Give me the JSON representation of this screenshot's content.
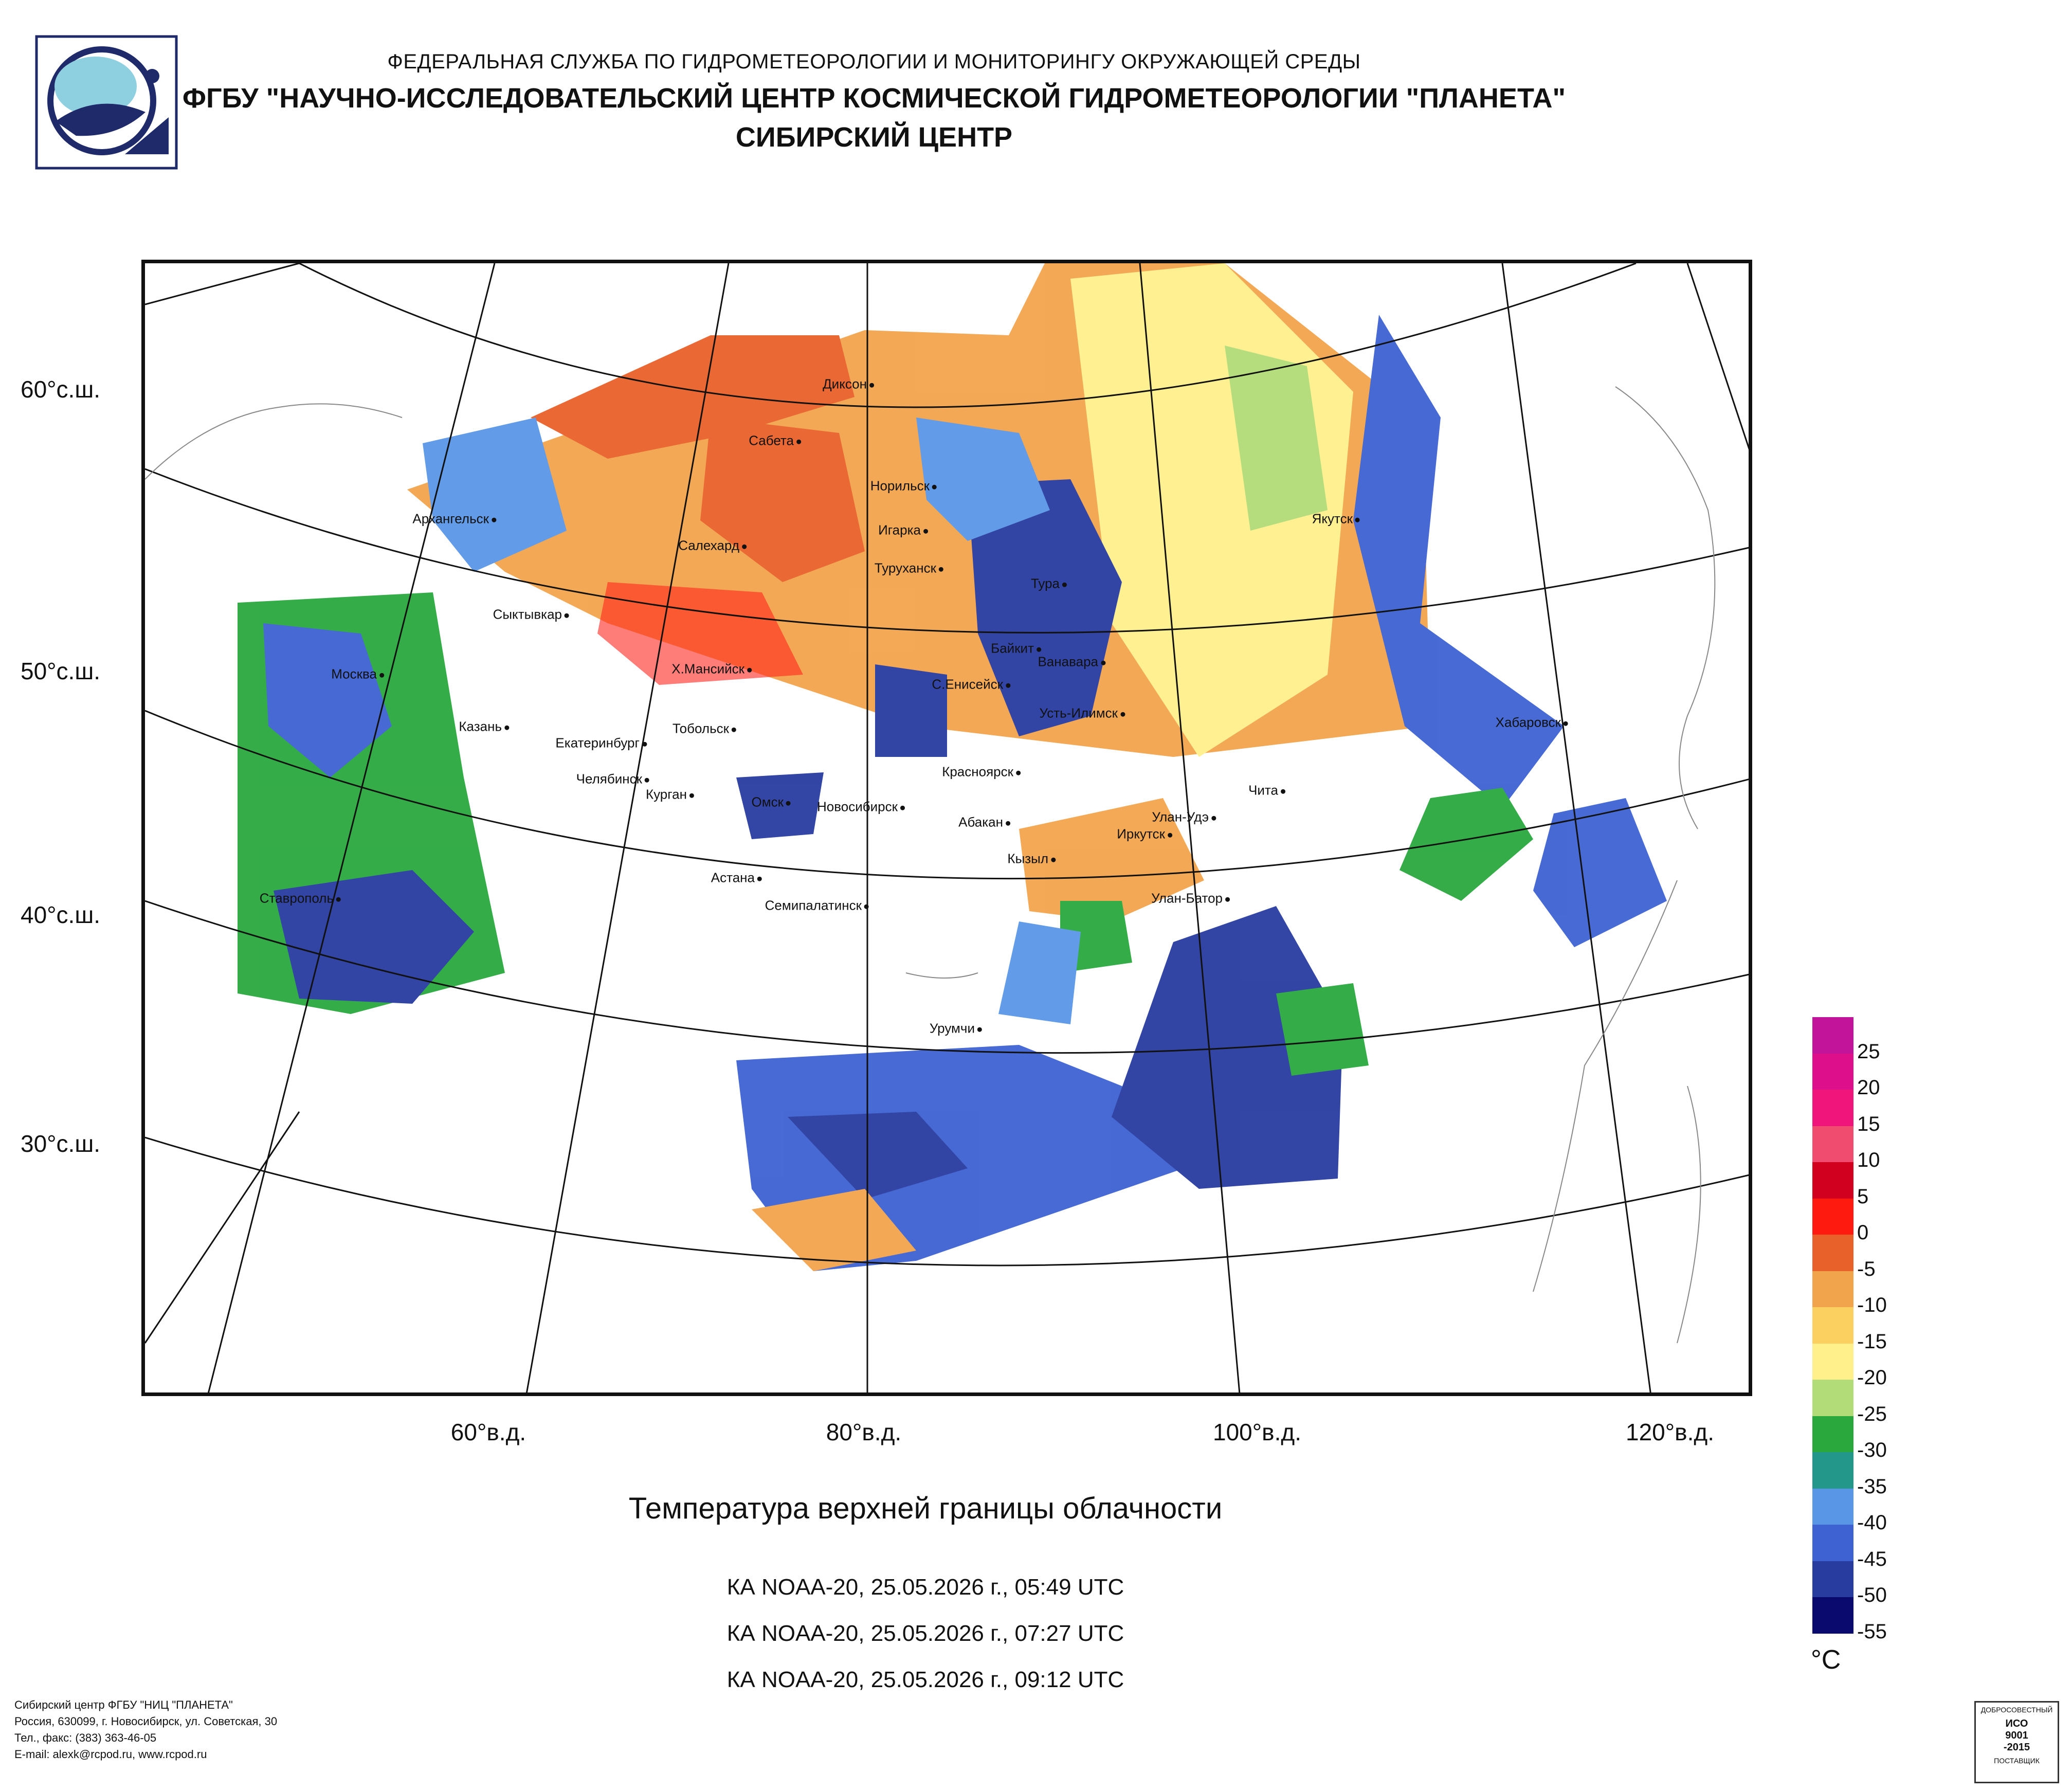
{
  "header": {
    "line1": "ФЕДЕРАЛЬНАЯ СЛУЖБА ПО ГИДРОМЕТЕОРОЛОГИИ И МОНИТОРИНГУ ОКРУЖАЮЩЕЙ СРЕДЫ",
    "line2": "ФГБУ \"НАУЧНО-ИССЛЕДОВАТЕЛЬСКИЙ ЦЕНТР КОСМИЧЕСКОЙ ГИДРОМЕТЕОРОЛОГИИ \"ПЛАНЕТА\"",
    "line3": "СИБИРСКИЙ ЦЕНТР"
  },
  "map": {
    "lat_labels": [
      "60°с.ш.",
      "50°с.ш.",
      "40°с.ш.",
      "30°с.ш."
    ],
    "lon_labels": [
      "60°в.д.",
      "80°в.д.",
      "100°в.д.",
      "120°в.д."
    ],
    "cities": [
      "Диксон",
      "Сабета",
      "Норильск",
      "Архангельск",
      "Игарка",
      "Салехард",
      "Туруханск",
      "Якутск",
      "Тура",
      "Сыктывкар",
      "Байкит",
      "Ванавара",
      "Х.Мансийск",
      "С.Енисейск",
      "Москва",
      "Усть-Илимск",
      "Хабаровск",
      "Казань",
      "Тобольск",
      "Екатеринбург",
      "Челябинск",
      "Курган",
      "Красноярск",
      "Чита",
      "Омск",
      "Новосибирск",
      "Улан-Удэ",
      "Абакан",
      "Иркутск",
      "Кызыл",
      "Астана",
      "Ставрополь",
      "Улан-Батор",
      "Семипалатинск",
      "Урумчи"
    ]
  },
  "title": "Температура верхней границы облачности",
  "passes": [
    "КА NOAA-20, 25.05.2026 г., 05:49 UTC",
    "КА NOAA-20, 25.05.2026 г., 07:27 UTC",
    "КА NOAA-20, 25.05.2026 г., 09:12 UTC"
  ],
  "legend": {
    "unit": "°C",
    "ticks": [
      "25",
      "20",
      "15",
      "10",
      "5",
      "0",
      "-5",
      "-10",
      "-15",
      "-20",
      "-25",
      "-30",
      "-35",
      "-40",
      "-45",
      "-50",
      "-55"
    ],
    "colors": [
      "#c2149a",
      "#de0f8a",
      "#f0157a",
      "#f04c70",
      "#d2001e",
      "#ff1a10",
      "#e8602a",
      "#f2a44c",
      "#fcd060",
      "#fff08c",
      "#b2dc78",
      "#2aa83e",
      "#23988a",
      "#5a96e6",
      "#3e62d2",
      "#283ca0",
      "#0a0a6e"
    ]
  },
  "footer": {
    "line1": "Сибирский центр ФГБУ \"НИЦ \"ПЛАНЕТА\"",
    "line2": "Россия, 630099, г. Новосибирск, ул. Советская, 30",
    "line3": "Тел., факс: (383) 363-46-05",
    "line4": "E-mail: alexk@rcpod.ru, www.rcpod.ru"
  },
  "certificate": {
    "top": "ДОБРОСОВЕСТНЫЙ",
    "line1": "ИСО",
    "line2": "9001",
    "line3": "-2015",
    "bottom": "ПОСТАВЩИК"
  }
}
